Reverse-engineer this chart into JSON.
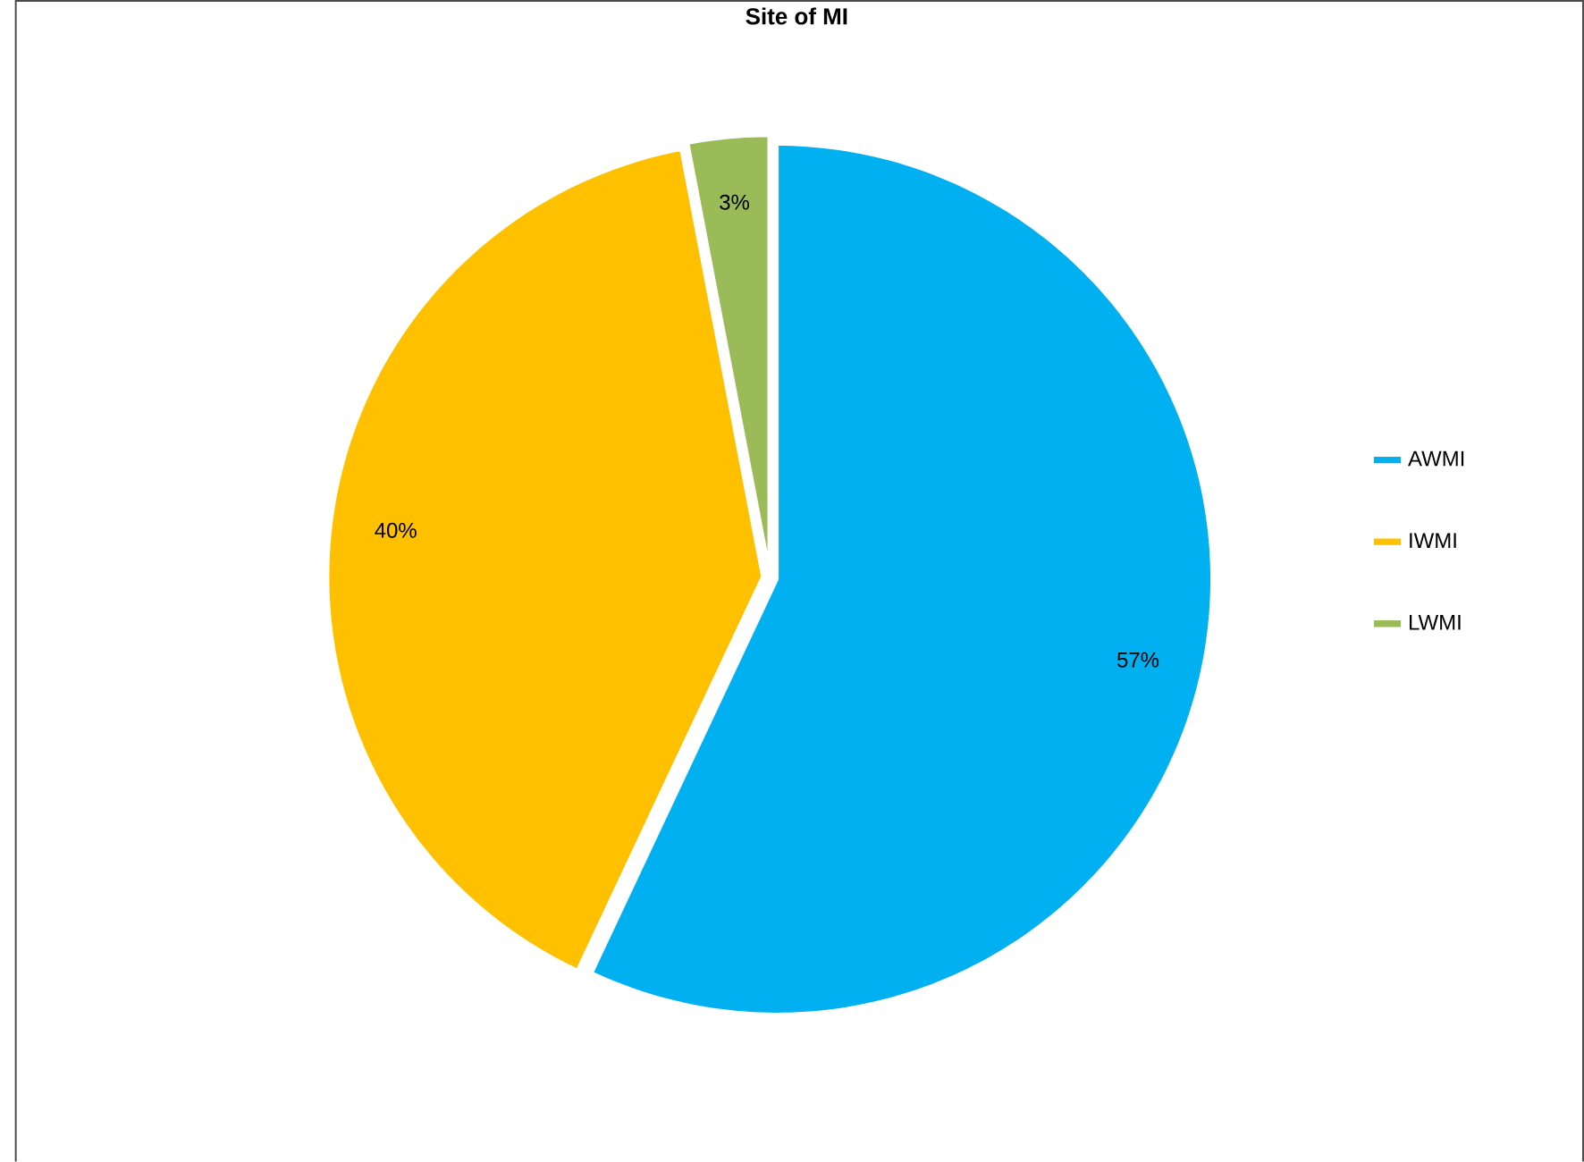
{
  "chart_data": {
    "type": "pie",
    "title": "Site of MI",
    "categories": [
      "AWMI",
      "IWMI",
      "LWMI"
    ],
    "values": [
      57,
      40,
      3
    ],
    "value_labels": [
      "57%",
      "40%",
      "3%"
    ],
    "colors": [
      "#00b0f0",
      "#ffc000",
      "#9bbb59"
    ],
    "legend": "right"
  }
}
